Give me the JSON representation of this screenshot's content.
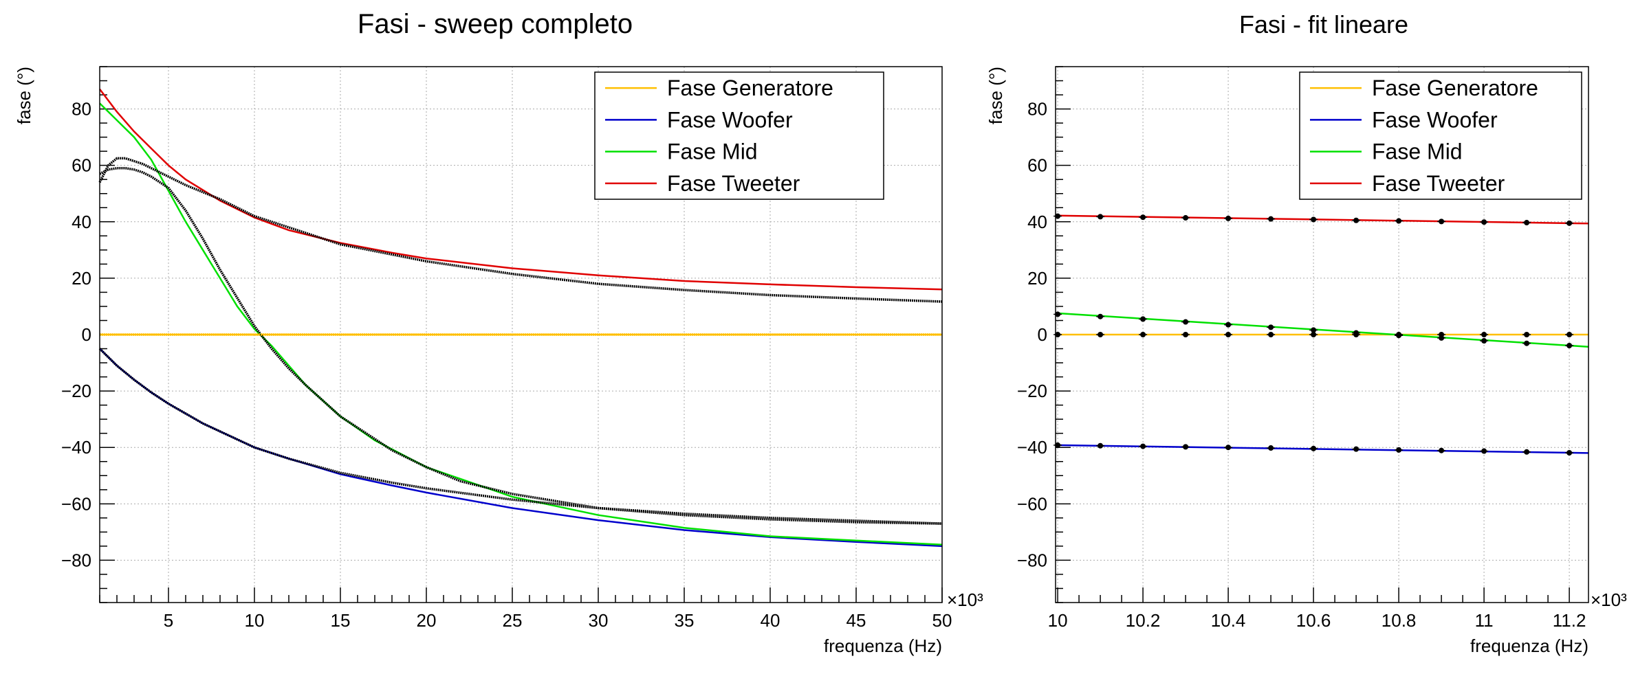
{
  "chart_data": [
    {
      "type": "line",
      "title": "Fasi - sweep completo",
      "xlabel": "frequenza (Hz)",
      "ylabel": "fase (°)",
      "x_multiplier": "×10³",
      "xlim": [
        1,
        50
      ],
      "ylim": [
        -95,
        95
      ],
      "x_ticks": [
        5,
        10,
        15,
        20,
        25,
        30,
        35,
        40,
        45,
        50
      ],
      "x_tick_labels": [
        "5",
        "10",
        "15",
        "20",
        "25",
        "30",
        "35",
        "40",
        "45",
        "50"
      ],
      "y_ticks": [
        -80,
        -60,
        -40,
        -20,
        0,
        20,
        40,
        60,
        80
      ],
      "y_tick_labels": [
        "−80",
        "−60",
        "−40",
        "−20",
        "0",
        "20",
        "40",
        "60",
        "80"
      ],
      "grid": true,
      "legend_position": "top-right",
      "legend": [
        {
          "name": "Fase Generatore",
          "color": "#ffbf00"
        },
        {
          "name": "Fase Woofer",
          "color": "#0000cc"
        },
        {
          "name": "Fase Mid",
          "color": "#00e000"
        },
        {
          "name": "Fase Tweeter",
          "color": "#e00000"
        }
      ],
      "series": [
        {
          "name": "Fase Generatore",
          "role": "fit",
          "color": "#ffbf00",
          "x": [
            1,
            50
          ],
          "y": [
            0,
            0
          ]
        },
        {
          "name": "Fase Woofer",
          "role": "fit",
          "color": "#0000cc",
          "x": [
            1,
            2,
            3,
            4,
            5,
            7,
            10,
            12,
            15,
            18,
            20,
            25,
            30,
            35,
            40,
            45,
            50
          ],
          "y": [
            -5,
            -11,
            -16,
            -20.5,
            -24.5,
            -31.5,
            -40,
            -44,
            -49.5,
            -53.5,
            -56,
            -61.5,
            -65.8,
            -69.3,
            -71.8,
            -73.5,
            -75
          ]
        },
        {
          "name": "Fase Mid",
          "role": "fit",
          "color": "#00e000",
          "x": [
            1,
            2,
            3,
            4,
            5,
            6,
            7,
            8,
            9,
            10,
            11,
            12,
            13,
            15,
            17,
            20,
            25,
            30,
            35,
            40,
            45,
            50
          ],
          "y": [
            82,
            76,
            70,
            62,
            51,
            40,
            30,
            20,
            10,
            2,
            -4,
            -11,
            -18,
            -29,
            -37.5,
            -47,
            -57.5,
            -64,
            -68.5,
            -71.5,
            -73,
            -74.5
          ]
        },
        {
          "name": "Fase Tweeter",
          "role": "fit",
          "color": "#e00000",
          "x": [
            1,
            2,
            3,
            4,
            5,
            6,
            8,
            10,
            12,
            15,
            18,
            20,
            25,
            30,
            35,
            40,
            45,
            50
          ],
          "y": [
            87,
            79,
            72,
            66,
            60,
            55,
            47.5,
            41.5,
            37,
            32.5,
            29,
            27,
            23.5,
            21,
            19,
            17.8,
            16.8,
            16
          ]
        },
        {
          "name": "",
          "role": "data",
          "color": "#000000",
          "x": [
            1,
            1.5,
            2,
            2.5,
            3,
            3.5,
            4,
            5,
            6,
            8,
            10,
            15,
            20,
            25,
            30,
            35,
            40,
            45,
            50
          ],
          "y": [
            54,
            60,
            62.5,
            62.5,
            61.5,
            60.5,
            59,
            56,
            53,
            48,
            42,
            32,
            26,
            21.5,
            18,
            15.8,
            14,
            12.8,
            11.7
          ]
        },
        {
          "name": "",
          "role": "data",
          "color": "#000000",
          "x": [
            1,
            1.5,
            2,
            2.5,
            3,
            3.5,
            4,
            5,
            6,
            7,
            8,
            9,
            10,
            11,
            12,
            13,
            15,
            17,
            18,
            20,
            22,
            25,
            30,
            35,
            40,
            45,
            50
          ],
          "y": [
            57,
            58.5,
            59,
            59,
            58.5,
            57.5,
            56,
            52,
            44,
            34,
            23,
            13,
            3,
            -5,
            -12,
            -18,
            -29,
            -37,
            -41,
            -47,
            -52,
            -56.5,
            -61.5,
            -64,
            -65.5,
            -66.5,
            -67
          ]
        },
        {
          "name": "",
          "role": "data",
          "color": "#000000",
          "x": [
            1,
            2,
            3,
            4,
            5,
            7,
            10,
            12,
            15,
            18,
            20,
            25,
            30,
            35,
            40,
            45,
            50
          ],
          "y": [
            -5,
            -11,
            -16,
            -20.5,
            -24.5,
            -31.5,
            -40,
            -44,
            -49,
            -52.5,
            -54.5,
            -58.5,
            -61.5,
            -63.5,
            -65,
            -66,
            -67
          ]
        },
        {
          "name": "",
          "role": "data",
          "color": "#ffbf00",
          "x": [
            1,
            50
          ],
          "y": [
            0,
            0
          ]
        }
      ]
    },
    {
      "type": "line",
      "title": "Fasi - fit lineare",
      "xlabel": "frequenza (Hz)",
      "ylabel": "fase (°)",
      "x_multiplier": "×10³",
      "xlim": [
        9.995,
        11.245
      ],
      "ylim": [
        -95,
        95
      ],
      "x_ticks": [
        10,
        10.2,
        10.4,
        10.6,
        10.8,
        11,
        11.2
      ],
      "x_tick_labels": [
        "10",
        "10.2",
        "10.4",
        "10.6",
        "10.8",
        "11",
        "11.2"
      ],
      "y_ticks": [
        -80,
        -60,
        -40,
        -20,
        0,
        20,
        40,
        60,
        80
      ],
      "y_tick_labels": [
        "−80",
        "−60",
        "−40",
        "−20",
        "0",
        "20",
        "40",
        "60",
        "80"
      ],
      "grid": true,
      "legend_position": "top-right",
      "legend": [
        {
          "name": "Fase Generatore",
          "color": "#ffbf00"
        },
        {
          "name": "Fase Woofer",
          "color": "#0000cc"
        },
        {
          "name": "Fase Mid",
          "color": "#00e000"
        },
        {
          "name": "Fase Tweeter",
          "color": "#e00000"
        }
      ],
      "series": [
        {
          "name": "Fase Generatore",
          "role": "fit",
          "color": "#ffbf00",
          "x": [
            9.995,
            11.245
          ],
          "y": [
            0,
            0
          ]
        },
        {
          "name": "Fase Woofer",
          "role": "fit",
          "color": "#0000cc",
          "x": [
            9.995,
            11.245
          ],
          "y": [
            -39.2,
            -42
          ]
        },
        {
          "name": "Fase Mid",
          "role": "fit",
          "color": "#00e000",
          "x": [
            9.995,
            11.245
          ],
          "y": [
            7.6,
            -4.3
          ]
        },
        {
          "name": "Fase Tweeter",
          "role": "fit",
          "color": "#e00000",
          "x": [
            9.995,
            11.245
          ],
          "y": [
            42.2,
            39.4
          ]
        },
        {
          "name": "",
          "role": "points",
          "color": "#000000",
          "x": [
            10,
            10.1,
            10.2,
            10.3,
            10.4,
            10.5,
            10.6,
            10.7,
            10.8,
            10.9,
            11,
            11.1,
            11.2
          ],
          "y": [
            0,
            0,
            0,
            0,
            0,
            0,
            0,
            0,
            0,
            0,
            0,
            0,
            0
          ]
        },
        {
          "name": "",
          "role": "points",
          "color": "#000000",
          "x": [
            10,
            10.1,
            10.2,
            10.3,
            10.4,
            10.5,
            10.6,
            10.7,
            10.8,
            10.9,
            11,
            11.1,
            11.2
          ],
          "y": [
            -39.2,
            -39.4,
            -39.6,
            -39.8,
            -40,
            -40.2,
            -40.4,
            -40.6,
            -40.9,
            -41.1,
            -41.3,
            -41.6,
            -41.9
          ]
        },
        {
          "name": "",
          "role": "points",
          "color": "#000000",
          "x": [
            10,
            10.1,
            10.2,
            10.3,
            10.4,
            10.5,
            10.6,
            10.7,
            10.8,
            10.9,
            11,
            11.1,
            11.2
          ],
          "y": [
            7.2,
            6.4,
            5.5,
            4.5,
            3.5,
            2.6,
            1.6,
            0.6,
            -0.3,
            -1.2,
            -2.2,
            -3.1,
            -3.9
          ]
        },
        {
          "name": "",
          "role": "points",
          "color": "#000000",
          "x": [
            10,
            10.1,
            10.2,
            10.3,
            10.4,
            10.5,
            10.6,
            10.7,
            10.8,
            10.9,
            11,
            11.1,
            11.2
          ],
          "y": [
            42,
            41.8,
            41.6,
            41.4,
            41.2,
            41,
            40.8,
            40.5,
            40.3,
            40.1,
            39.9,
            39.7,
            39.5
          ]
        }
      ]
    }
  ]
}
